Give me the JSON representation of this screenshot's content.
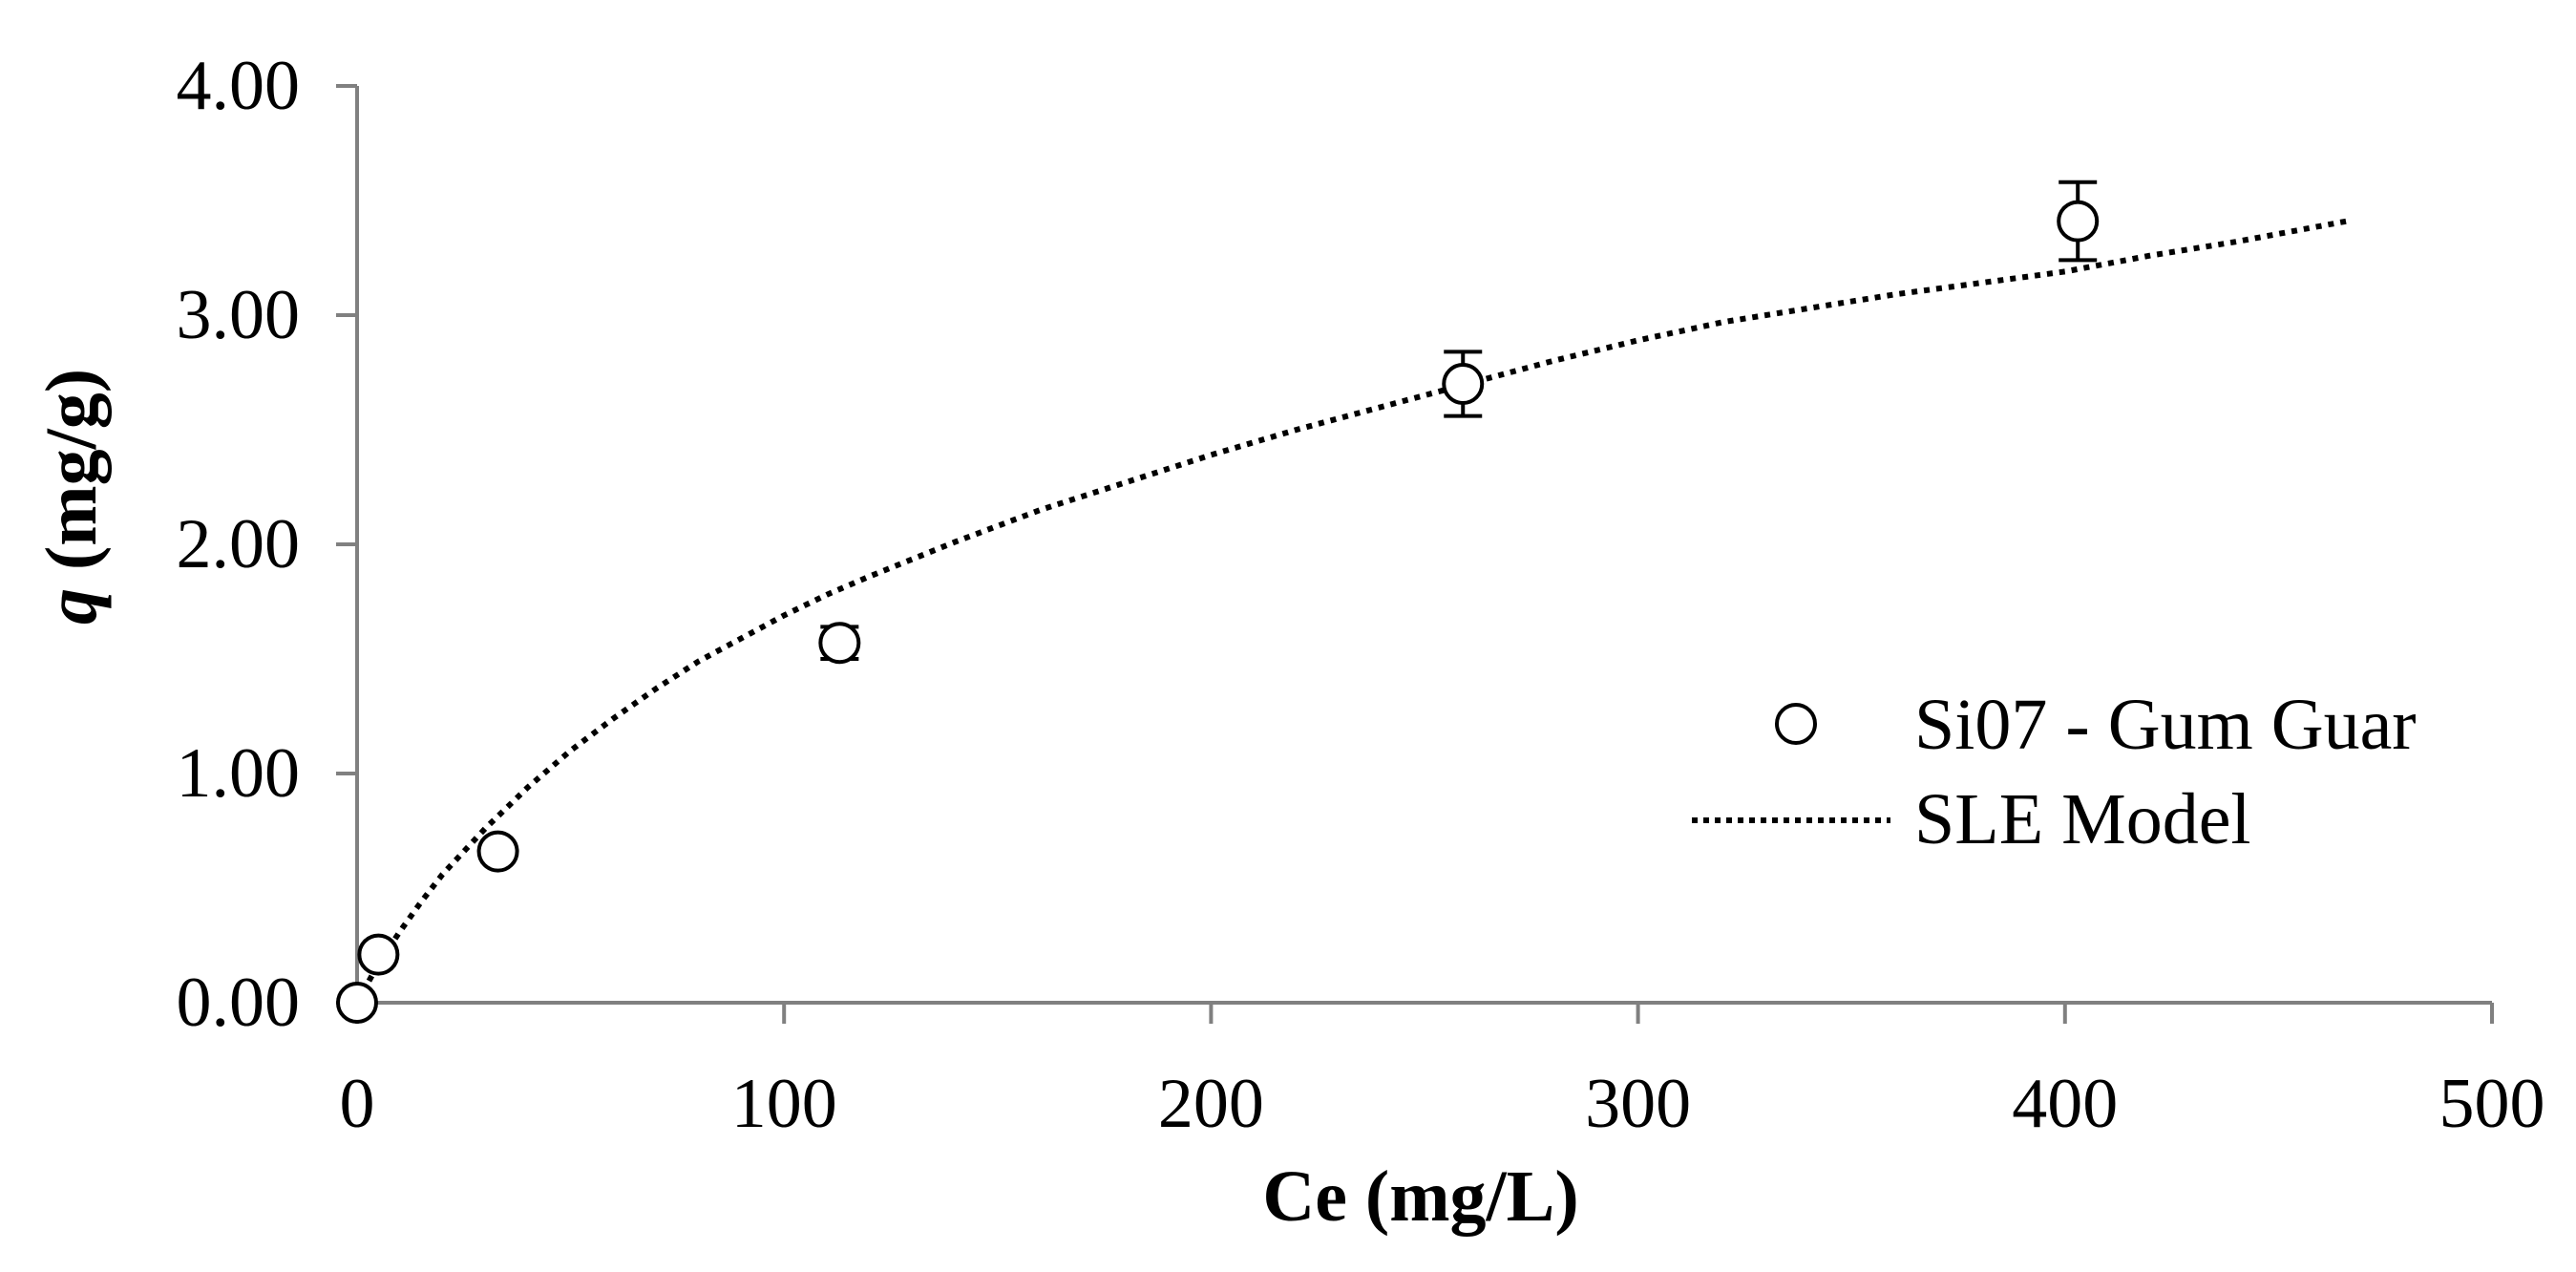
{
  "chart_data": {
    "type": "scatter",
    "title": "",
    "xlabel": "Ce (mg/L)",
    "ylabel_italic": "q",
    "ylabel_rest": " (mg/g)",
    "xlim": [
      0,
      500
    ],
    "ylim": [
      0,
      4
    ],
    "xticks": [
      0,
      100,
      200,
      300,
      400,
      500
    ],
    "xtick_labels": [
      "0",
      "100",
      "200",
      "300",
      "400",
      "500"
    ],
    "yticks": [
      0,
      1,
      2,
      3,
      4
    ],
    "ytick_labels": [
      "0.00",
      "1.00",
      "2.00",
      "3.00",
      "4.00"
    ],
    "grid": false,
    "legend_position": "right",
    "series": [
      {
        "name": "Si07 - Gum Guar",
        "kind": "scatter",
        "marker": "open-circle",
        "x": [
          0,
          5,
          33,
          113,
          259,
          403
        ],
        "y": [
          0.0,
          0.21,
          0.66,
          1.57,
          2.7,
          3.41
        ],
        "error": [
          0.0,
          0.0,
          0.0,
          0.07,
          0.14,
          0.17
        ]
      },
      {
        "name": "SLE Model",
        "kind": "line",
        "style": "dotted",
        "x": [
          0,
          5,
          10,
          15,
          20,
          30,
          40,
          50,
          60,
          70,
          80,
          90,
          100,
          110,
          120,
          140,
          160,
          180,
          200,
          220,
          240,
          260,
          280,
          300,
          320,
          340,
          360,
          380,
          400,
          420,
          440,
          466
        ],
        "y": [
          0.0,
          0.17,
          0.31,
          0.44,
          0.56,
          0.76,
          0.94,
          1.1,
          1.24,
          1.37,
          1.49,
          1.59,
          1.69,
          1.78,
          1.86,
          2.01,
          2.15,
          2.27,
          2.39,
          2.5,
          2.6,
          2.7,
          2.8,
          2.89,
          2.97,
          3.03,
          3.09,
          3.14,
          3.19,
          3.26,
          3.32,
          3.41
        ]
      }
    ]
  }
}
